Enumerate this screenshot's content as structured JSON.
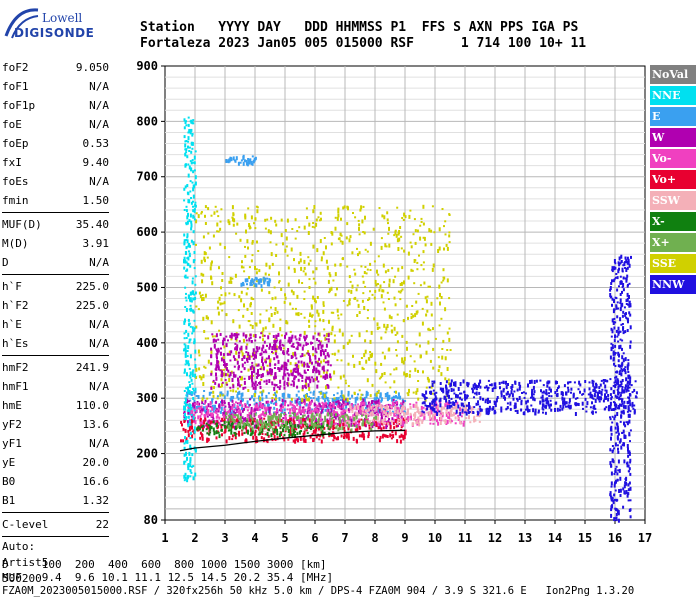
{
  "logo": {
    "line1": "Lowell",
    "line2": "DIGISONDE"
  },
  "header": {
    "row1": "Station   YYYY DAY   DDD HHMMSS P1  FFS S AXN PPS IGA PS",
    "row2": "Fortaleza 2023 Jan05 005 015000 RSF      1 714 100 10+ 11"
  },
  "params": {
    "group1": [
      {
        "name": "foF2",
        "value": "9.050"
      },
      {
        "name": "foF1",
        "value": "N/A"
      },
      {
        "name": "foF1p",
        "value": "N/A"
      },
      {
        "name": "foE",
        "value": "N/A"
      },
      {
        "name": "foEp",
        "value": "0.53"
      },
      {
        "name": "fxI",
        "value": "9.40"
      },
      {
        "name": "foEs",
        "value": "N/A"
      },
      {
        "name": "fmin",
        "value": "1.50"
      }
    ],
    "group2": [
      {
        "name": "MUF(D)",
        "value": "35.40"
      },
      {
        "name": "M(D)",
        "value": "3.91"
      },
      {
        "name": "D",
        "value": "N/A"
      }
    ],
    "group3": [
      {
        "name": "h`F",
        "value": "225.0"
      },
      {
        "name": "h`F2",
        "value": "225.0"
      },
      {
        "name": "h`E",
        "value": "N/A"
      },
      {
        "name": "h`Es",
        "value": "N/A"
      }
    ],
    "group4": [
      {
        "name": "hmF2",
        "value": "241.9"
      },
      {
        "name": "hmF1",
        "value": "N/A"
      },
      {
        "name": "hmE",
        "value": "110.0"
      },
      {
        "name": "yF2",
        "value": "13.6"
      },
      {
        "name": "yF1",
        "value": "N/A"
      },
      {
        "name": "yE",
        "value": "20.0"
      },
      {
        "name": "B0",
        "value": "16.6"
      },
      {
        "name": "B1",
        "value": "1.32"
      }
    ],
    "group5": [
      {
        "name": "C-level",
        "value": "22"
      }
    ],
    "auto": [
      "Auto:",
      "Artist5",
      "500200"
    ]
  },
  "bottom": {
    "d_row": "D     100  200  400  600  800 1000 1500 3000 [km]",
    "muf_row": "MUF   9.4  9.6 10.1 11.1 12.5 14.5 20.2 35.4 [MHz]",
    "footer": "FZA0M_2023005015000.RSF / 320fx256h 50 kHz 5.0 km / DPS-4 FZA0M 904 / 3.9 S 321.6 E   Ion2Png 1.3.20"
  },
  "legend": [
    {
      "label": "NoVal",
      "color": "#808080"
    },
    {
      "label": "NNE",
      "color": "#00e0f0"
    },
    {
      "label": "E",
      "color": "#3aa0f0"
    },
    {
      "label": "W",
      "color": "#b000b0"
    },
    {
      "label": "Vo-",
      "color": "#f040c0"
    },
    {
      "label": "Vo+",
      "color": "#e80030"
    },
    {
      "label": "SSW",
      "color": "#f4b0b8"
    },
    {
      "label": "X-",
      "color": "#108010"
    },
    {
      "label": "X+",
      "color": "#70b050"
    },
    {
      "label": "SSE",
      "color": "#d0d000"
    },
    {
      "label": "NNW",
      "color": "#2010e0"
    }
  ],
  "chart_data": {
    "type": "scatter",
    "xlabel": "",
    "ylabel": "",
    "xlim": [
      1,
      17
    ],
    "ylim": [
      80,
      900
    ],
    "xticks": [
      1,
      2,
      3,
      4,
      5,
      6,
      7,
      8,
      9,
      10,
      11,
      12,
      13,
      14,
      15,
      16,
      17
    ],
    "yticks": [
      80,
      200,
      300,
      400,
      500,
      600,
      700,
      800,
      900
    ],
    "grid": true,
    "trace": {
      "name": "",
      "x": [
        1.5,
        2.0,
        3.0,
        4.0,
        5.0,
        6.0,
        7.0,
        8.0,
        9.0
      ],
      "y": [
        205,
        210,
        215,
        222,
        228,
        233,
        238,
        241,
        242
      ]
    },
    "echo_bands": [
      {
        "legend": "E",
        "x": [
          1.7,
          9.0
        ],
        "y": [
          275,
          315
        ]
      },
      {
        "legend": "W",
        "x": [
          1.6,
          9.0
        ],
        "y": [
          250,
          300
        ]
      },
      {
        "legend": "Vo-",
        "x": [
          1.6,
          11.0
        ],
        "y": [
          255,
          295
        ]
      },
      {
        "legend": "Vo+",
        "x": [
          1.5,
          9.0
        ],
        "y": [
          225,
          265
        ]
      },
      {
        "legend": "SSW",
        "x": [
          7.0,
          11.5
        ],
        "y": [
          255,
          290
        ]
      },
      {
        "legend": "X-",
        "x": [
          2.0,
          6.5
        ],
        "y": [
          235,
          260
        ]
      },
      {
        "legend": "X+",
        "x": [
          3.0,
          8.0
        ],
        "y": [
          245,
          275
        ]
      },
      {
        "legend": "SSE",
        "x": [
          2.0,
          10.5
        ],
        "y": [
          300,
          650
        ]
      },
      {
        "legend": "NNW",
        "x": [
          9.5,
          16.7
        ],
        "y": [
          275,
          335
        ]
      },
      {
        "legend": "NNE",
        "x": [
          1.6,
          2.0
        ],
        "y": [
          150,
          810
        ]
      },
      {
        "legend": "E",
        "x": [
          3.0,
          4.0
        ],
        "y": [
          725,
          740
        ]
      },
      {
        "legend": "E",
        "x": [
          3.5,
          4.5
        ],
        "y": [
          505,
          520
        ]
      },
      {
        "legend": "W",
        "x": [
          2.5,
          6.5
        ],
        "y": [
          320,
          420
        ]
      },
      {
        "legend": "NNW",
        "x": [
          15.8,
          16.5
        ],
        "y": [
          80,
          560
        ]
      }
    ]
  }
}
